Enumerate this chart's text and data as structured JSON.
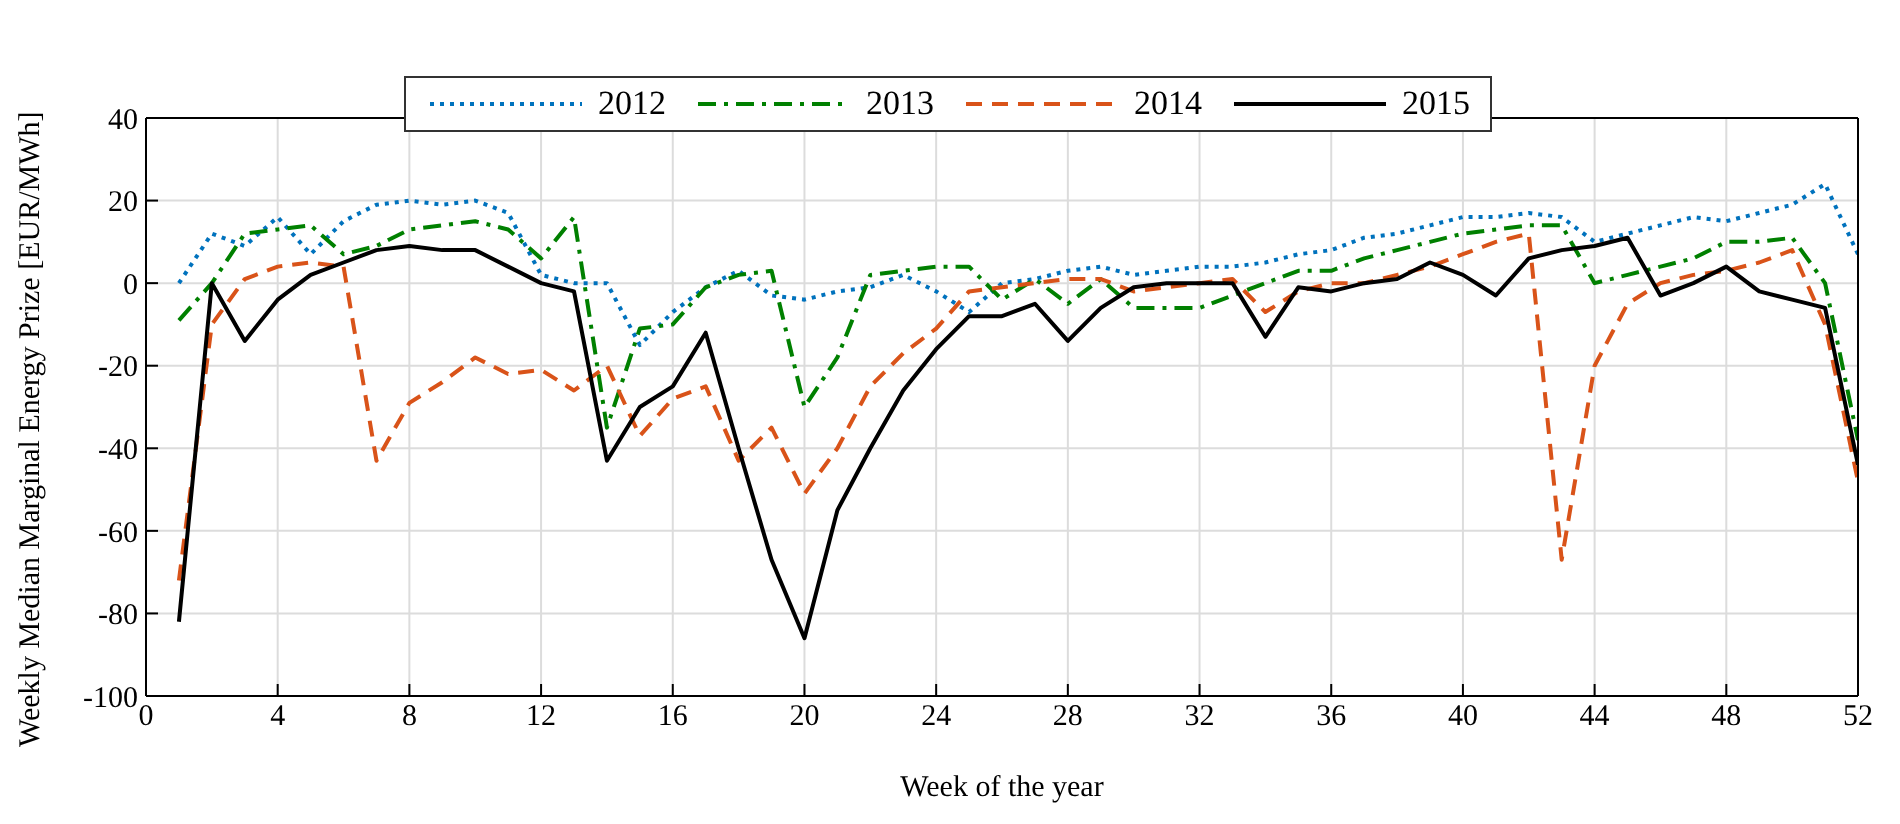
{
  "chart_data": {
    "type": "line",
    "xlabel": "Week of the year",
    "ylabel": "Weekly Median Marginal Energy Prize [EUR/MWh]",
    "x": [
      1,
      2,
      3,
      4,
      5,
      6,
      7,
      8,
      9,
      10,
      11,
      12,
      13,
      14,
      15,
      16,
      17,
      18,
      19,
      20,
      21,
      22,
      23,
      24,
      25,
      26,
      27,
      28,
      29,
      30,
      31,
      32,
      33,
      34,
      35,
      36,
      37,
      38,
      39,
      40,
      41,
      42,
      43,
      44,
      45,
      46,
      47,
      48,
      49,
      50,
      51,
      52
    ],
    "series": [
      {
        "name": "2012",
        "color": "#0072bd",
        "line_style": "dotted",
        "values": [
          0,
          12,
          9,
          16,
          7,
          15,
          19,
          20,
          19,
          20,
          17,
          2,
          0,
          0,
          -15,
          -7,
          -1,
          3,
          -3,
          -4,
          -2,
          -1,
          2,
          -2,
          -7,
          0,
          1,
          3,
          4,
          2,
          3,
          4,
          4,
          5,
          7,
          8,
          11,
          12,
          14,
          16,
          16,
          17,
          16,
          10,
          12,
          14,
          16,
          15,
          17,
          19,
          24,
          7
        ]
      },
      {
        "name": "2013",
        "color": "#008000",
        "line_style": "dashdot",
        "values": [
          -9,
          0,
          12,
          13,
          14,
          7,
          9,
          13,
          14,
          15,
          13,
          6,
          16,
          -35,
          -11,
          -10,
          -1,
          2,
          3,
          -30,
          -18,
          2,
          3,
          4,
          4,
          -4,
          1,
          -5,
          1,
          -6,
          -6,
          -6,
          -3,
          0,
          3,
          3,
          6,
          8,
          10,
          12,
          13,
          14,
          14,
          0,
          2,
          4,
          6,
          10,
          10,
          11,
          0,
          -38
        ]
      },
      {
        "name": "2014",
        "color": "#d95319",
        "line_style": "dashed",
        "values": [
          -72,
          -10,
          1,
          4,
          5,
          4,
          -43,
          -29,
          -24,
          -18,
          -22,
          -21,
          -26,
          -20,
          -37,
          -28,
          -25,
          -43,
          -35,
          -51,
          -40,
          -25,
          -17,
          -11,
          -2,
          -1,
          0,
          1,
          1,
          -2,
          -1,
          0,
          1,
          -7,
          -2,
          0,
          0,
          2,
          4,
          7,
          10,
          12,
          -67,
          -20,
          -5,
          0,
          2,
          3,
          5,
          8,
          -10,
          -48
        ]
      },
      {
        "name": "2015",
        "color": "#000000",
        "line_style": "solid",
        "values": [
          -82,
          0,
          -14,
          -4,
          2,
          5,
          8,
          9,
          8,
          8,
          4,
          0,
          -2,
          -43,
          -30,
          -25,
          -12,
          -40,
          -67,
          -86,
          -55,
          -40,
          -26,
          -16,
          -8,
          -8,
          -5,
          -14,
          -6,
          -1,
          0,
          0,
          0,
          -13,
          -1,
          -2,
          0,
          1,
          5,
          2,
          -3,
          6,
          8,
          9,
          11,
          -3,
          0,
          4,
          -2,
          -4,
          -6,
          -44
        ]
      }
    ],
    "xlim": [
      0,
      52
    ],
    "xticks": [
      0,
      4,
      8,
      12,
      16,
      20,
      24,
      28,
      32,
      36,
      40,
      44,
      48,
      52
    ],
    "ylim": [
      -100,
      40
    ],
    "yticks": [
      -100,
      -80,
      -60,
      -40,
      -20,
      0,
      20,
      40
    ],
    "grid": true,
    "legend": "top",
    "marker": "none"
  }
}
